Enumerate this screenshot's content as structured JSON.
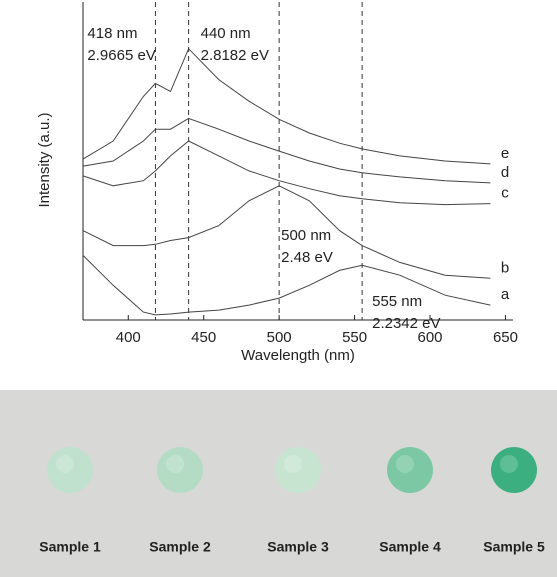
{
  "chart_data": {
    "type": "line",
    "x_label": "Wavelength (nm)",
    "y_label": "Intensity (a.u.)",
    "xlim": [
      370,
      655
    ],
    "ylim": [
      0,
      100
    ],
    "xticks": [
      400,
      450,
      500,
      550,
      600,
      650
    ],
    "x": [
      370,
      390,
      410,
      418,
      428,
      440,
      460,
      480,
      500,
      520,
      540,
      555,
      580,
      610,
      640
    ],
    "series": [
      {
        "name": "e",
        "color": "#444444",
        "values": [
          50.6,
          56.3,
          70.3,
          74.4,
          71.9,
          85.3,
          75.6,
          68.8,
          63.1,
          58.8,
          55.6,
          53.8,
          51.6,
          50,
          49.1
        ]
      },
      {
        "name": "d",
        "color": "#444444",
        "values": [
          48.4,
          50,
          56.3,
          60,
          60,
          63.4,
          60,
          56.3,
          53.1,
          50,
          47.5,
          46.3,
          45,
          43.8,
          43.1
        ]
      },
      {
        "name": "c",
        "color": "#444444",
        "values": [
          45.3,
          42.2,
          43.8,
          46.9,
          51.6,
          56.3,
          51.6,
          46.9,
          43.8,
          41.3,
          39.1,
          38.1,
          36.9,
          36.3,
          36.6
        ]
      },
      {
        "name": "b",
        "color": "#444444",
        "values": [
          28.1,
          23.4,
          23.4,
          23.8,
          25,
          25.9,
          29.7,
          37.5,
          42.2,
          37.5,
          28.1,
          23.4,
          18.1,
          14.1,
          13.1
        ]
      },
      {
        "name": "a",
        "color": "#444444",
        "values": [
          20.3,
          10.9,
          2.5,
          1.6,
          1.9,
          2.5,
          3.1,
          4.7,
          6.9,
          10.9,
          15.6,
          17.2,
          14.1,
          7.8,
          4.7
        ]
      }
    ],
    "reference_lines": [
      {
        "x": 418,
        "labels": [
          "418 nm",
          "2.9665 eV"
        ]
      },
      {
        "x": 440,
        "labels": [
          "440 nm",
          "2.8182 eV"
        ]
      },
      {
        "x": 500,
        "labels": [
          "500 nm",
          "2.48 eV"
        ]
      },
      {
        "x": 555,
        "labels": [
          "555 nm",
          "2.2342 eV"
        ]
      }
    ]
  },
  "samples": [
    {
      "label": "Sample 1",
      "color": "#bfe2cd"
    },
    {
      "label": "Sample 2",
      "color": "#b2dcc4"
    },
    {
      "label": "Sample 3",
      "color": "#c6e5d1"
    },
    {
      "label": "Sample 4",
      "color": "#78c7a1"
    },
    {
      "label": "Sample 5",
      "color": "#34ad7b"
    }
  ]
}
